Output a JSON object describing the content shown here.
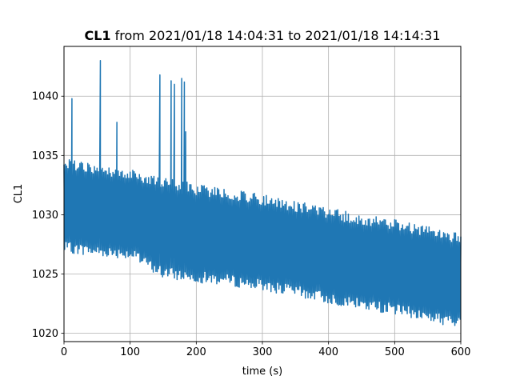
{
  "chart_data": {
    "type": "line",
    "title": {
      "variable": "CL1",
      "rest": " from 2021/01/18 14:04:31 to 2021/01/18 14:14:31"
    },
    "xlabel": "time (s)",
    "ylabel": "CL1",
    "xlim": [
      0,
      600
    ],
    "ylim": [
      1019.3,
      1044.2
    ],
    "x_ticks": [
      0,
      100,
      200,
      300,
      400,
      500,
      600
    ],
    "y_ticks": [
      1020,
      1025,
      1030,
      1035,
      1040
    ],
    "grid": true,
    "legend": "none",
    "color": "#1f77b4",
    "series": [
      {
        "sampling": "oscillating signal sampled at about 1 s intervals, values alternate between the upper and lower envelope",
        "envelope": {
          "x": [
            0,
            50,
            100,
            150,
            200,
            250,
            300,
            350,
            400,
            450,
            500,
            550,
            600
          ],
          "upper": [
            1034.8,
            1034.2,
            1033.8,
            1033.2,
            1032.6,
            1032.2,
            1031.7,
            1031.2,
            1030.6,
            1030.0,
            1029.6,
            1029.0,
            1028.4
          ],
          "lower": [
            1026.8,
            1026.5,
            1026.3,
            1024.6,
            1024.3,
            1024.0,
            1023.6,
            1023.1,
            1022.5,
            1022.0,
            1021.6,
            1021.0,
            1020.4
          ]
        },
        "spikes": [
          {
            "x": 12,
            "y": 1039.8
          },
          {
            "x": 55,
            "y": 1043.0
          },
          {
            "x": 80,
            "y": 1037.8
          },
          {
            "x": 145,
            "y": 1041.8
          },
          {
            "x": 162,
            "y": 1041.3
          },
          {
            "x": 167,
            "y": 1041.0
          },
          {
            "x": 178,
            "y": 1041.5
          },
          {
            "x": 182,
            "y": 1041.2
          },
          {
            "x": 184,
            "y": 1037.0
          }
        ]
      }
    ]
  }
}
